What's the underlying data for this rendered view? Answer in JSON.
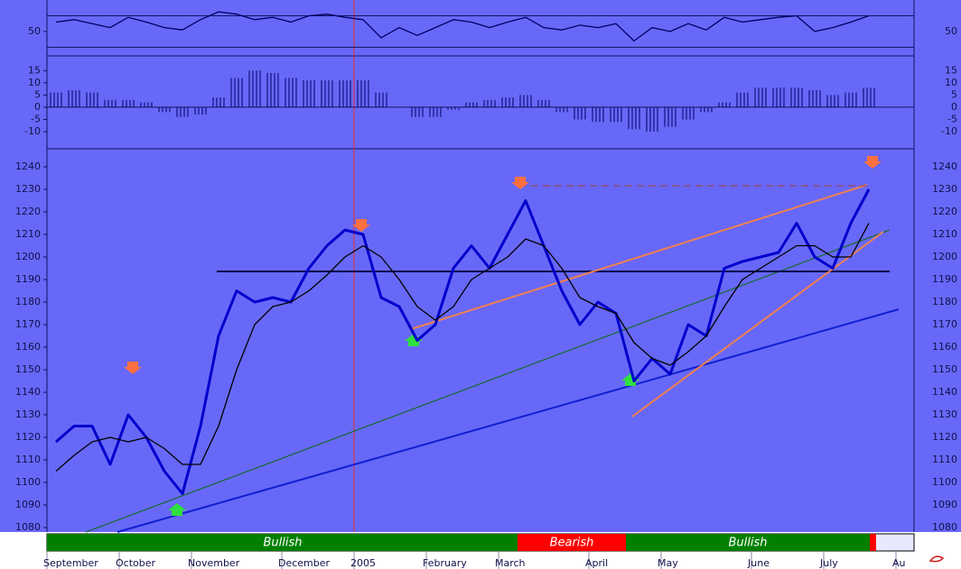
{
  "chart_data": [
    {
      "type": "line",
      "ylim": [
        19,
        90
      ],
      "yticks": [
        50
      ],
      "levels": [
        30,
        70
      ],
      "series": [
        {
          "color": "#000066",
          "values": [
            62,
            65,
            60,
            55,
            68,
            62,
            55,
            52,
            65,
            75,
            72,
            65,
            68,
            62,
            70,
            72,
            68,
            65,
            42,
            55,
            45,
            55,
            65,
            62,
            55,
            62,
            68,
            55,
            52,
            58,
            55,
            60,
            38,
            55,
            50,
            60,
            52,
            68,
            62,
            65,
            68,
            70,
            50,
            55,
            62,
            70,
            null,
            null
          ]
        }
      ]
    },
    {
      "type": "bar",
      "ylim": [
        -17,
        21
      ],
      "yticks": [
        15,
        10,
        5,
        0,
        -5,
        -10
      ],
      "color": "#000066",
      "values": [
        6,
        7,
        6,
        3,
        3,
        2,
        -2,
        -4,
        -3,
        4,
        12,
        15,
        14,
        12,
        11,
        11,
        11,
        11,
        6,
        0,
        -4,
        -4,
        -1,
        2,
        3,
        4,
        5,
        3,
        -2,
        -5,
        -6,
        -6,
        -9,
        -10,
        -8,
        -5,
        -2,
        2,
        6,
        8,
        8,
        8,
        7,
        5,
        6,
        8,
        null,
        null
      ]
    },
    {
      "type": "line",
      "ylim": [
        1078,
        1248
      ],
      "yticks": [
        1240,
        1230,
        1220,
        1210,
        1200,
        1190,
        1180,
        1170,
        1160,
        1150,
        1140,
        1130,
        1120,
        1110,
        1100,
        1090,
        1080
      ],
      "categories": [
        "September",
        null,
        null,
        null,
        "October",
        null,
        null,
        null,
        "November",
        null,
        null,
        null,
        null,
        "December",
        null,
        null,
        null,
        "2005",
        null,
        null,
        null,
        "February",
        null,
        null,
        null,
        "March",
        null,
        null,
        null,
        null,
        "April",
        null,
        null,
        null,
        "May",
        null,
        null,
        null,
        null,
        "June",
        null,
        null,
        null,
        "July",
        null,
        null,
        null,
        "Au"
      ],
      "series": [
        {
          "color": "#0000cc",
          "values": [
            1118,
            1125,
            1125,
            1108,
            1130,
            1120,
            1105,
            1095,
            1125,
            1165,
            1185,
            1180,
            1182,
            1180,
            1195,
            1205,
            1212,
            1210,
            1182,
            1178,
            1163,
            1170,
            1195,
            1205,
            1195,
            1210,
            1225,
            1205,
            1185,
            1170,
            1180,
            1175,
            1145,
            1155,
            1148,
            1170,
            1165,
            1195,
            1198,
            1200,
            1202,
            1215,
            1200,
            1195,
            1215,
            1230,
            null,
            null
          ]
        },
        {
          "color": "#000000",
          "values": [
            1105,
            1112,
            1118,
            1120,
            1118,
            1120,
            1115,
            1108,
            1108,
            1125,
            1150,
            1170,
            1178,
            1180,
            1185,
            1192,
            1200,
            1205,
            1200,
            1190,
            1178,
            1172,
            1178,
            1190,
            1195,
            1200,
            1208,
            1205,
            1195,
            1182,
            1178,
            1175,
            1162,
            1155,
            1152,
            1158,
            1165,
            1178,
            1190,
            1195,
            1200,
            1205,
            1205,
            1200,
            1200,
            1215,
            null,
            null
          ]
        }
      ]
    }
  ],
  "signals": [
    "Bullish",
    "Bearish",
    "Bullish"
  ]
}
